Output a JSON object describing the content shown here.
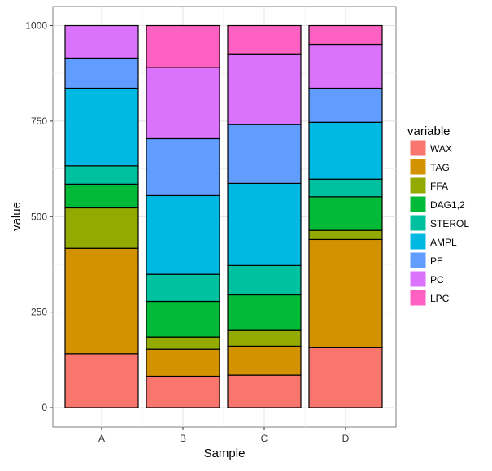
{
  "chart_data": {
    "type": "bar",
    "stacked": true,
    "title": "",
    "xlabel": "Sample",
    "ylabel": "value",
    "ylim": [
      0,
      1000
    ],
    "yticks": [
      0,
      250,
      500,
      750,
      1000
    ],
    "grid": true,
    "categories": [
      "A",
      "B",
      "C",
      "D"
    ],
    "legend": {
      "title": "variable",
      "placement": "right"
    },
    "series": [
      {
        "name": "WAX",
        "color": "#F8766D",
        "values": [
          141,
          82,
          85,
          157
        ]
      },
      {
        "name": "TAG",
        "color": "#D39200",
        "values": [
          276,
          71,
          76,
          283
        ]
      },
      {
        "name": "FFA",
        "color": "#93AA00",
        "values": [
          106,
          32,
          41,
          24
        ]
      },
      {
        "name": "DAG1,2",
        "color": "#00BA38",
        "values": [
          62,
          93,
          93,
          88
        ]
      },
      {
        "name": "STEROL",
        "color": "#00C19F",
        "values": [
          48,
          71,
          77,
          46
        ]
      },
      {
        "name": "AMPL",
        "color": "#00B9E3",
        "values": [
          203,
          206,
          215,
          149
        ]
      },
      {
        "name": "PE",
        "color": "#619CFF",
        "values": [
          79,
          149,
          154,
          89
        ]
      },
      {
        "name": "PC",
        "color": "#DB72FB",
        "values": [
          85,
          186,
          185,
          115
        ]
      },
      {
        "name": "LPC",
        "color": "#FF61C3",
        "values": [
          0,
          110,
          74,
          49
        ]
      }
    ]
  }
}
